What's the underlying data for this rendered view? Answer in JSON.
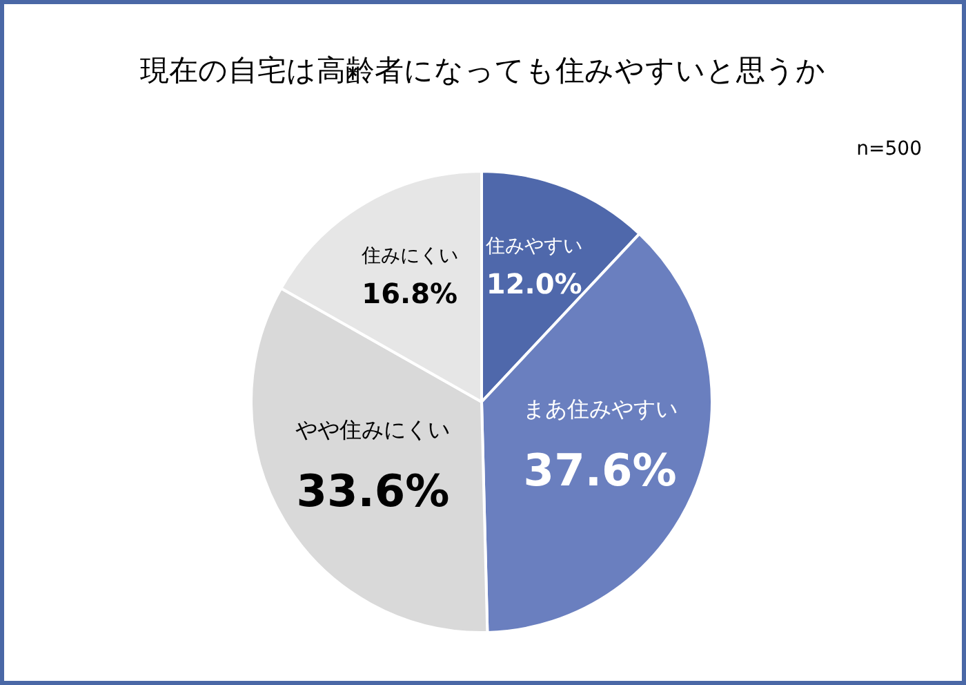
{
  "chart_data": {
    "type": "pie",
    "title": "現在の自宅は高齢者になっても住みやすいと思うか",
    "annotations": [
      "n=500"
    ],
    "categories": [
      "住みやすい",
      "まあ住みやすい",
      "やや住みにくい",
      "住みにくい"
    ],
    "values": [
      12.0,
      37.6,
      33.6,
      16.8
    ],
    "colors": [
      "#4f68ab",
      "#6a7fbf",
      "#d9d9d9",
      "#e6e6e6"
    ],
    "value_labels": [
      "12.0%",
      "37.6%",
      "33.6%",
      "16.8%"
    ]
  }
}
